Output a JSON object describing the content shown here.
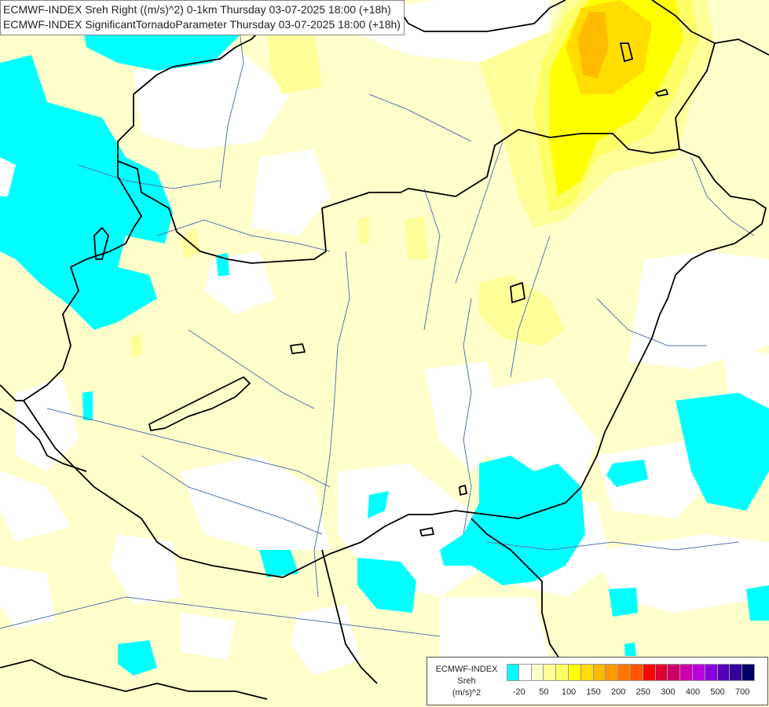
{
  "header": {
    "line1": "ECMWF-INDEX Sreh Right ((m/s)^2) 0-1km Thursday 03-07-2025 18:00 (+18h)",
    "line2": "ECMWF-INDEX SignificantTornadoParameter Thursday 03-07-2025 18:00 (+18h)"
  },
  "legend": {
    "title": "ECMWF-INDEX",
    "variable": "Sreh",
    "unit": "(m/s)^2",
    "colors": [
      "#00ffff",
      "#ffffff",
      "#ffffcc",
      "#ffff99",
      "#ffff66",
      "#ffff00",
      "#ffdd00",
      "#ffbb00",
      "#ff9900",
      "#ff7700",
      "#ff5500",
      "#ff0000",
      "#dd0033",
      "#cc0066",
      "#cc00aa",
      "#bb00dd",
      "#8800dd",
      "#5500bb",
      "#330099",
      "#000066"
    ],
    "ticks": [
      "-20",
      "50",
      "100",
      "150",
      "200",
      "250",
      "300",
      "400",
      "500",
      "700"
    ]
  },
  "map": {
    "colors": {
      "cyan": "#00ffff",
      "light_yellow": "#ffffcc",
      "yellow_100": "#ffff99",
      "yellow_150": "#ffff00",
      "yellow_200": "#ffdd00",
      "orange_250": "#ffbb00",
      "border": "#000000",
      "river": "#5577aa"
    }
  }
}
